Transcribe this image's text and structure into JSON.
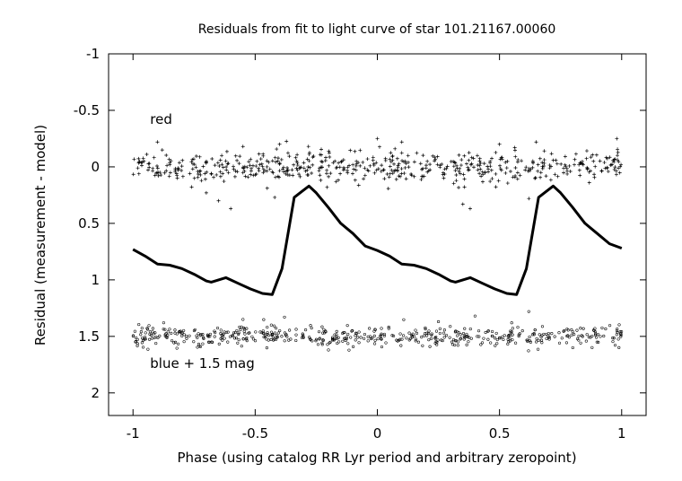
{
  "chart_data": {
    "type": "scatter",
    "title": "Residuals from fit to light curve of star 101.21167.00060",
    "xlabel": "Phase (using catalog RR Lyr period and arbitrary zeropoint)",
    "ylabel": "Residual (measurement - model)",
    "xlim": [
      -1.1,
      1.1
    ],
    "ylim": [
      -1,
      2.2
    ],
    "y_inverted": true,
    "grid": false,
    "x_ticks": [
      -1,
      -0.5,
      0,
      0.5,
      1
    ],
    "x_tick_labels": [
      "-1",
      "-0.5",
      "0",
      "0.5",
      "1"
    ],
    "y_ticks": [
      -1,
      -0.5,
      0,
      0.5,
      1,
      1.5,
      2
    ],
    "y_tick_labels": [
      "-1",
      "-0.5",
      "0",
      "0.5",
      "1",
      "1.5",
      "2"
    ],
    "annotations": [
      {
        "text": "red",
        "x": -0.93,
        "y": -0.38
      },
      {
        "text": "blue + 1.5 mag",
        "x": -0.93,
        "y": 1.78
      }
    ],
    "series": [
      {
        "kind": "scatter",
        "marker": "plus",
        "x_range": [
          -1,
          1
        ],
        "center": 0.0,
        "spread": 0.07,
        "count": 560,
        "outliers": [
          {
            "x": -0.9,
            "y": -0.22
          },
          {
            "x": -0.7,
            "y": 0.23
          },
          {
            "x": -0.65,
            "y": 0.3
          },
          {
            "x": -0.6,
            "y": 0.37
          },
          {
            "x": -0.55,
            "y": -0.18
          },
          {
            "x": -0.42,
            "y": 0.27
          },
          {
            "x": -0.4,
            "y": -0.2
          },
          {
            "x": 0.0,
            "y": -0.25
          },
          {
            "x": 0.1,
            "y": -0.22
          },
          {
            "x": 0.35,
            "y": 0.33
          },
          {
            "x": 0.38,
            "y": 0.37
          },
          {
            "x": 0.5,
            "y": -0.2
          },
          {
            "x": 0.62,
            "y": 0.28
          },
          {
            "x": 0.65,
            "y": -0.22
          },
          {
            "x": 0.98,
            "y": -0.25
          }
        ]
      },
      {
        "kind": "line",
        "x": [
          -1,
          -0.95,
          -0.9,
          -0.85,
          -0.8,
          -0.75,
          -0.7,
          -0.68,
          -0.62,
          -0.57,
          -0.52,
          -0.47,
          -0.43,
          -0.39,
          -0.34,
          -0.31,
          -0.28,
          -0.25,
          -0.2,
          -0.15,
          -0.1,
          -0.05,
          0,
          0.05,
          0.1,
          0.15,
          0.2,
          0.25,
          0.3,
          0.32,
          0.38,
          0.43,
          0.48,
          0.53,
          0.57,
          0.61,
          0.66,
          0.69,
          0.72,
          0.75,
          0.8,
          0.85,
          0.9,
          0.95,
          1
        ],
        "y": [
          0.73,
          0.79,
          0.86,
          0.87,
          0.9,
          0.95,
          1.01,
          1.02,
          0.98,
          1.03,
          1.08,
          1.12,
          1.13,
          0.9,
          0.27,
          0.22,
          0.17,
          0.23,
          0.36,
          0.5,
          0.59,
          0.7,
          0.74,
          0.79,
          0.86,
          0.87,
          0.9,
          0.95,
          1.01,
          1.02,
          0.98,
          1.03,
          1.08,
          1.12,
          1.13,
          0.9,
          0.27,
          0.22,
          0.17,
          0.23,
          0.36,
          0.5,
          0.59,
          0.68,
          0.72
        ]
      },
      {
        "kind": "scatter",
        "marker": "circle",
        "x_range": [
          -1,
          1
        ],
        "center": 1.5,
        "spread": 0.045,
        "count": 520,
        "outliers": [
          {
            "x": -0.55,
            "y": 1.35
          },
          {
            "x": -0.38,
            "y": 1.33
          },
          {
            "x": -0.2,
            "y": 1.62
          },
          {
            "x": 0.25,
            "y": 1.37
          },
          {
            "x": 0.4,
            "y": 1.32
          },
          {
            "x": 0.55,
            "y": 1.38
          },
          {
            "x": 0.62,
            "y": 1.28
          },
          {
            "x": 0.8,
            "y": 1.6
          }
        ]
      }
    ]
  }
}
